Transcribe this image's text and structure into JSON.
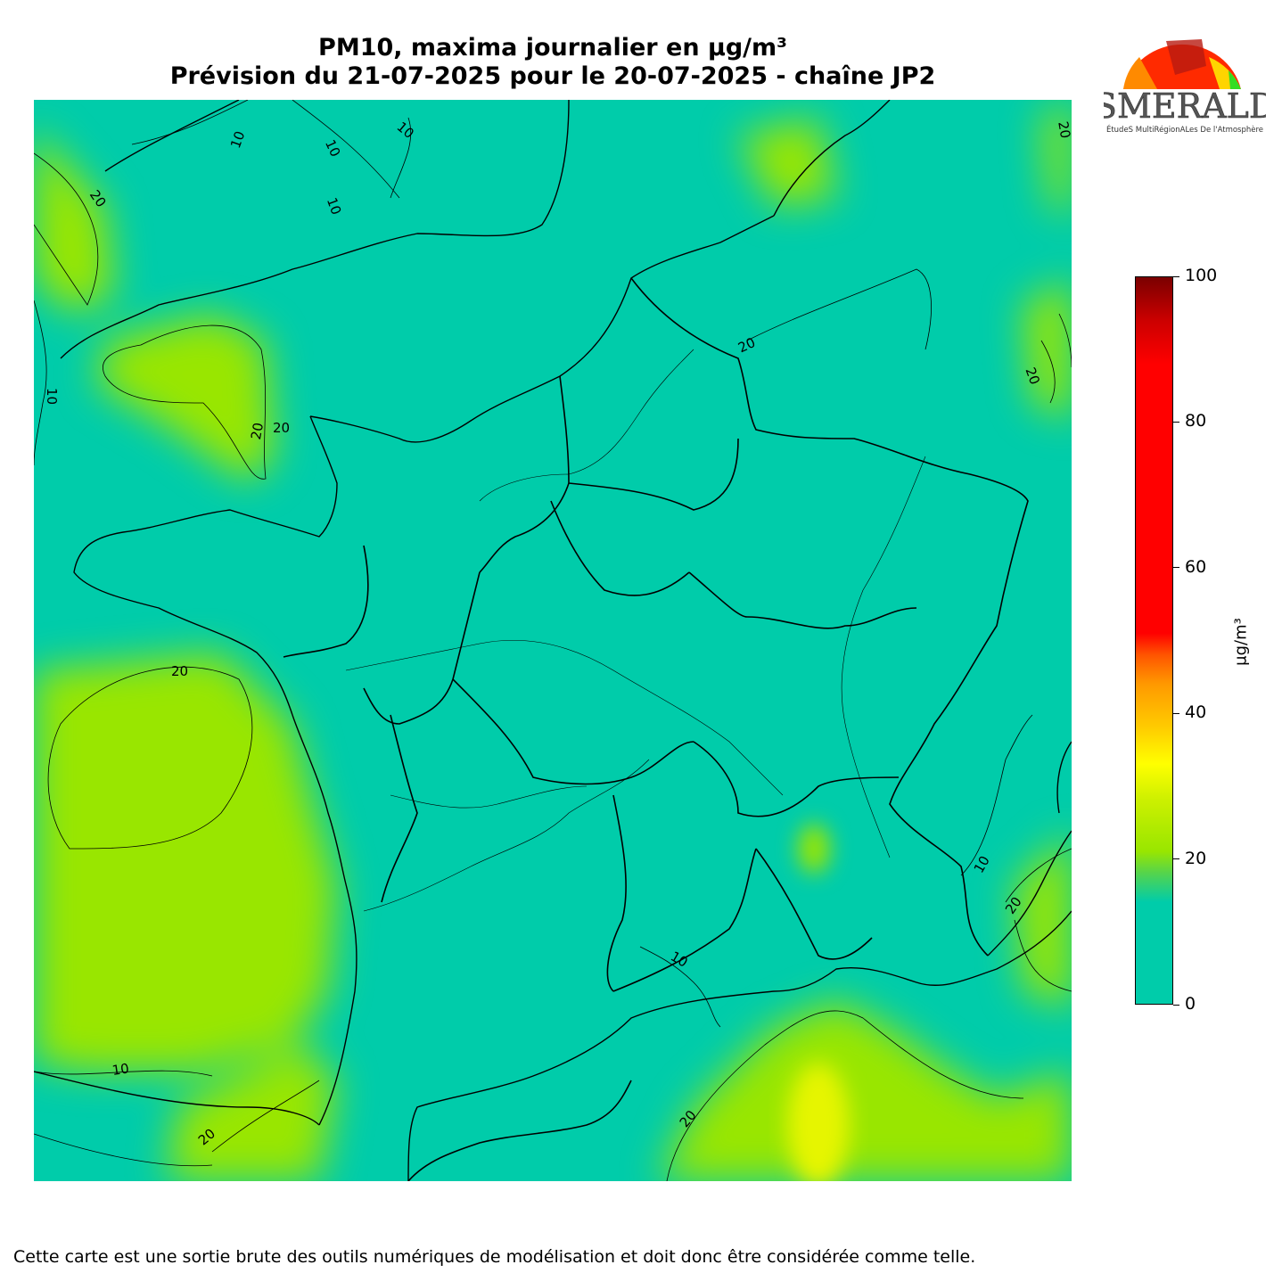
{
  "title": {
    "line1": "PM10, maxima journalier en µg/m³",
    "line2": "Prévision du 21-07-2025 pour le 20-07-2025 - chaîne JP2"
  },
  "logo": {
    "name": "ESMERALDA",
    "tagline": "ÉtudeS MultiRégionALes De l'Atmosphère"
  },
  "colorbar": {
    "unit": "µg/m³",
    "ticks": [
      "0",
      "20",
      "40",
      "60",
      "80",
      "100"
    ],
    "range": [
      0,
      100
    ],
    "stops": [
      {
        "value": 0,
        "color": "#00ccaa"
      },
      {
        "value": 14,
        "color": "#00ccaa"
      },
      {
        "value": 18,
        "color": "#55d44c"
      },
      {
        "value": 21,
        "color": "#99e600"
      },
      {
        "value": 28,
        "color": "#ccf000"
      },
      {
        "value": 33,
        "color": "#ffff00"
      },
      {
        "value": 38,
        "color": "#ffcc00"
      },
      {
        "value": 44,
        "color": "#ff9900"
      },
      {
        "value": 48,
        "color": "#ff5500"
      },
      {
        "value": 51,
        "color": "#ff0000"
      },
      {
        "value": 88,
        "color": "#ff0000"
      },
      {
        "value": 94,
        "color": "#cc0000"
      },
      {
        "value": 100,
        "color": "#7a0000"
      }
    ]
  },
  "map": {
    "contour_labels": [
      "10",
      "10",
      "10",
      "10",
      "20",
      "20",
      "20",
      "20",
      "20",
      "20",
      "20",
      "10",
      "10",
      "20",
      "10",
      "20",
      "20",
      "10"
    ],
    "background_color": "#00ccaa",
    "elevated_color": "#99e600",
    "peak_color": "#e6f500"
  },
  "footer": "Cette carte est une sortie brute des outils numériques de modélisation et doit donc être considérée comme telle."
}
